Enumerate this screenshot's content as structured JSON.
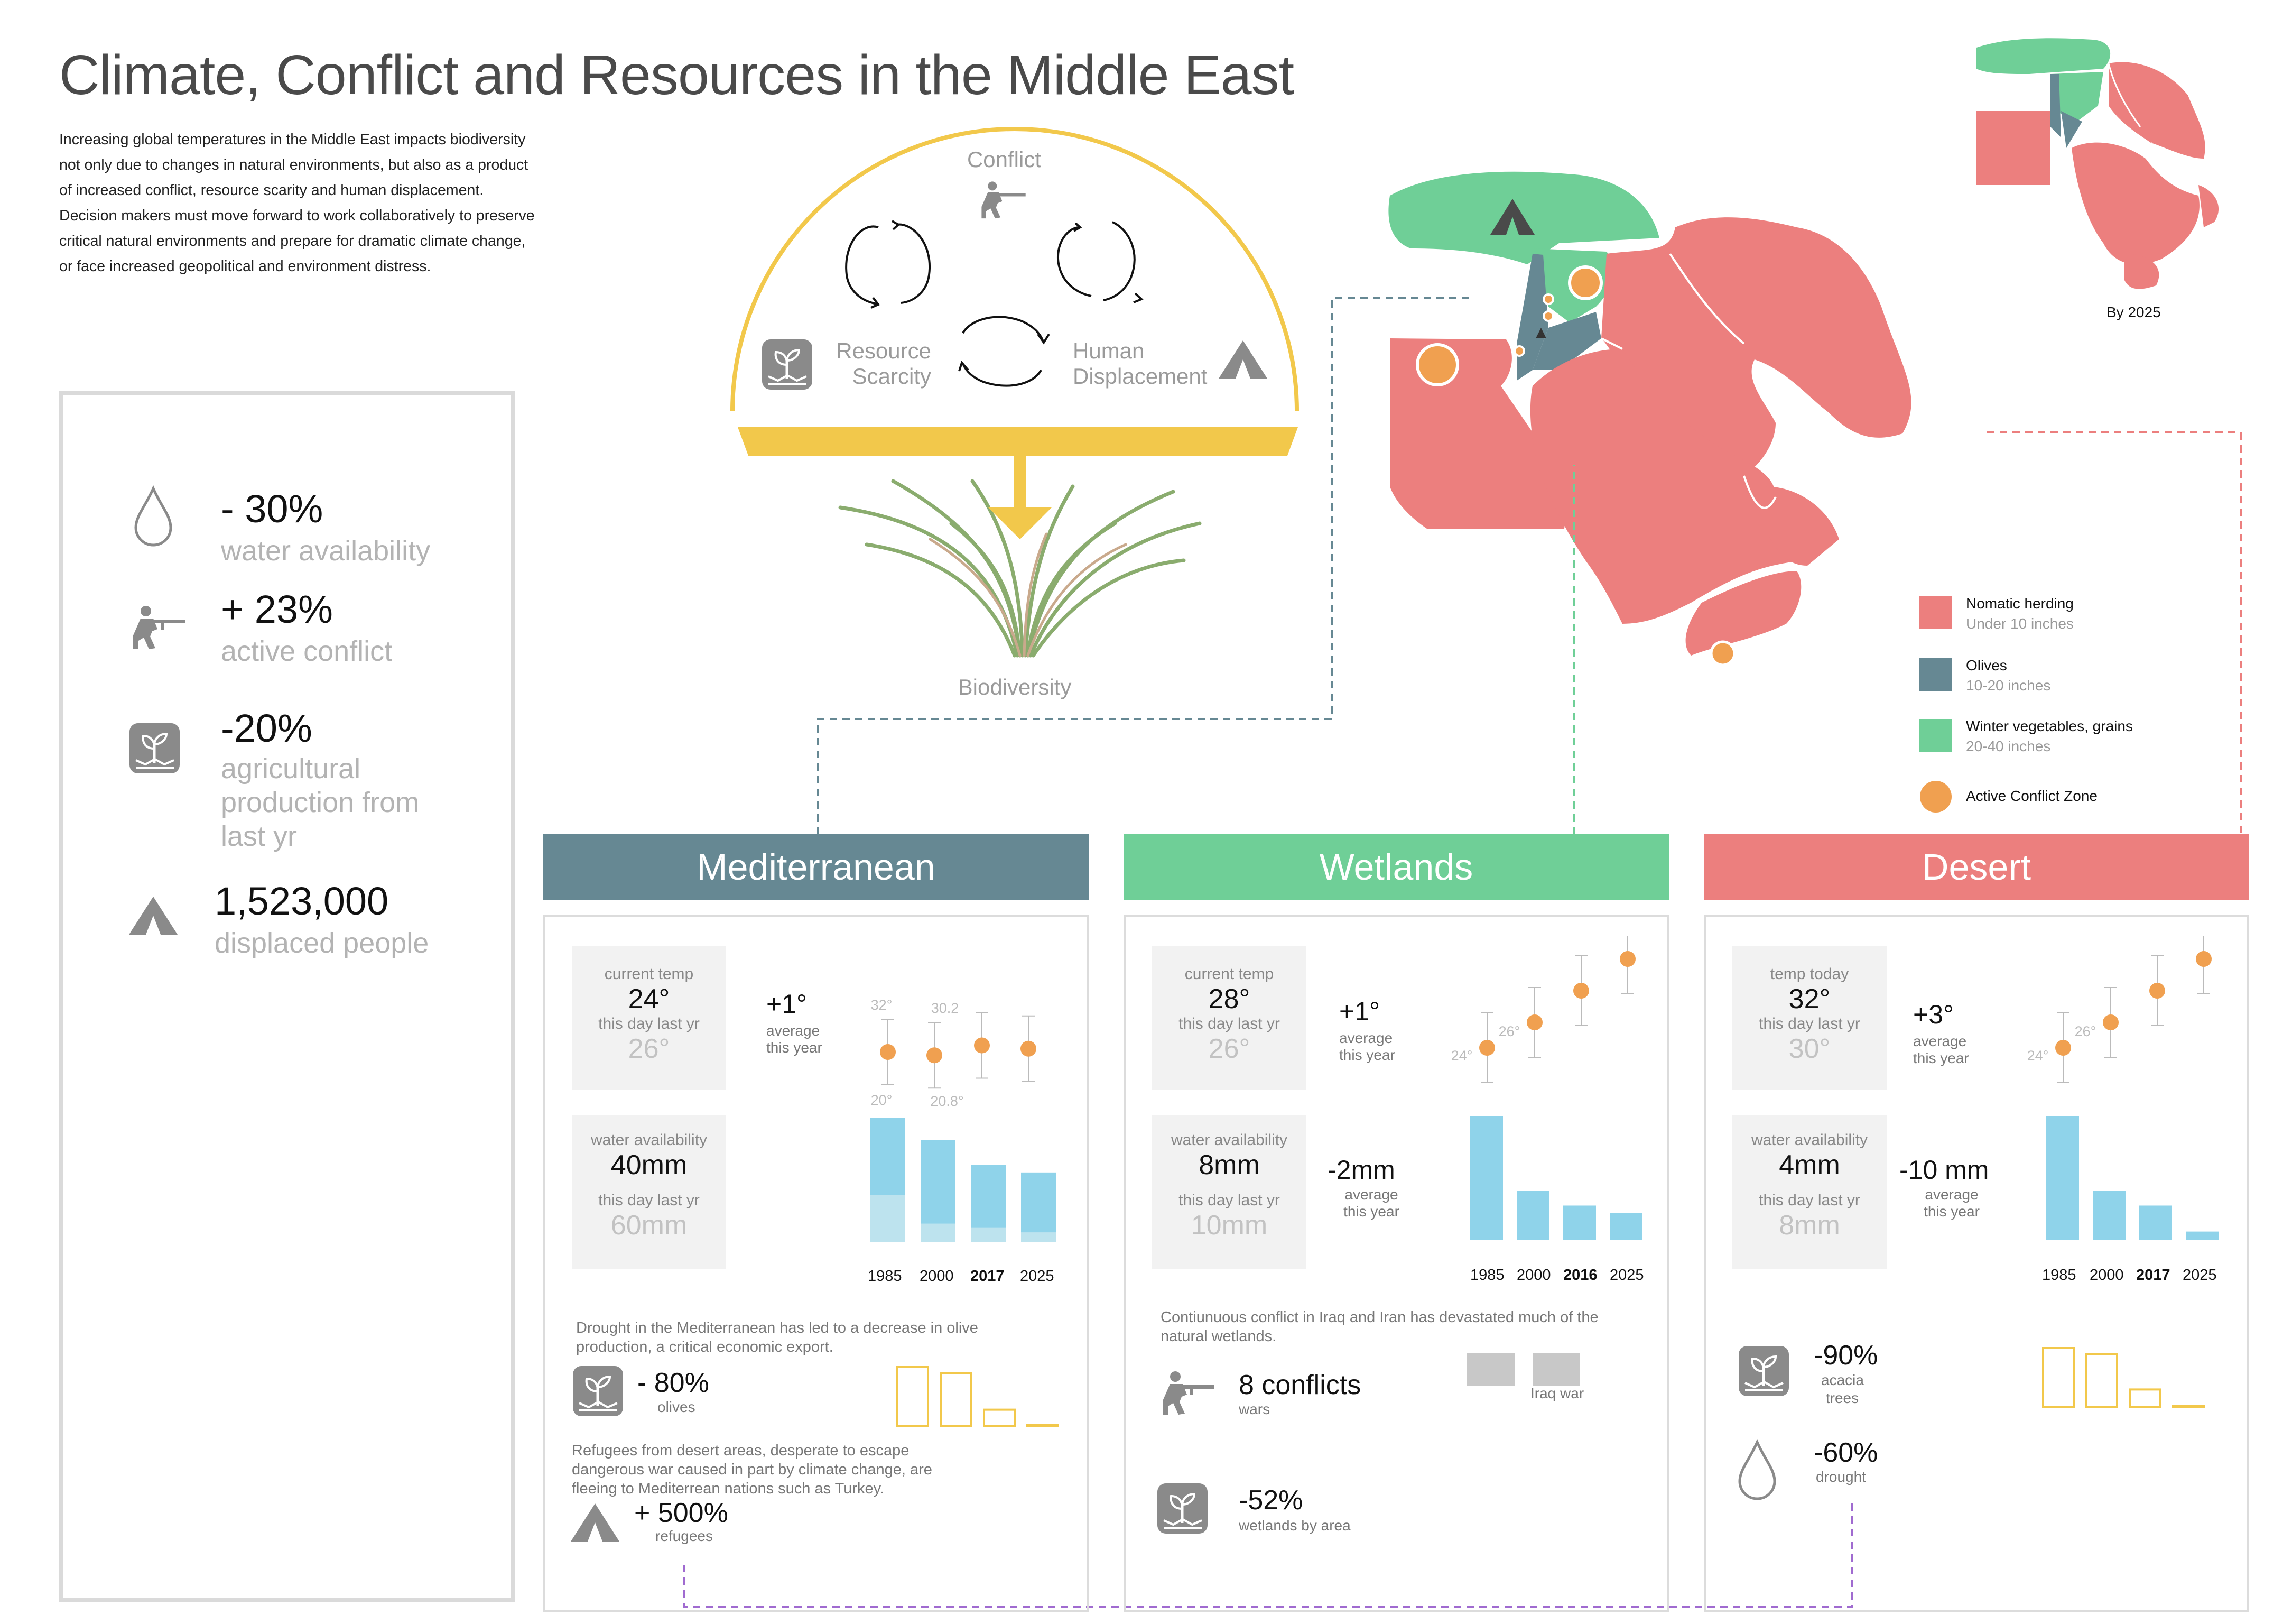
{
  "header": {
    "title": "Climate, Conflict and Resources in the Middle East",
    "intro": "Increasing global temperatures in the Middle East impacts biodiversity not only due to changes in natural environments, but also as a product of increased conflict, resource scarity and human displacement. Decision makers must move forward to work collaboratively to preserve critical natural environments and prepare for dramatic climate change, or face increased geopolitical and environment distress."
  },
  "summary": {
    "water": {
      "value": "- 30%",
      "label": "water availability",
      "icon": "water-drop-icon"
    },
    "conflict": {
      "value": "+ 23%",
      "label": "active conflict",
      "icon": "soldier-icon"
    },
    "agri": {
      "value": "-20%",
      "label": "agricultural production from last yr",
      "icon": "plant-icon"
    },
    "displaced": {
      "value": "1,523,000",
      "label": "displaced people",
      "icon": "tent-icon"
    }
  },
  "cycle": {
    "conflict": "Conflict",
    "resource": "Resource Scarcity",
    "human": "Human Displacement",
    "biodiversity": "Biodiversity"
  },
  "map": {
    "inset_label": "By 2025",
    "legend": [
      {
        "title": "Nomatic herding",
        "sub": "Under 10 inches",
        "color": "#ec7f7e"
      },
      {
        "title": "Olives",
        "sub": "10-20 inches",
        "color": "#668893"
      },
      {
        "title": "Winter vegetables, grains",
        "sub": "20-40 inches",
        "color": "#6fcf97"
      },
      {
        "title": "Active Conflict Zone",
        "sub": "",
        "color": "#f0a050"
      }
    ]
  },
  "colors": {
    "med": "#668893",
    "wet": "#6fcf97",
    "des": "#ec7f7e",
    "bar": "#8fd3ea",
    "bar_light": "#bde3ee",
    "dot": "#f0a050",
    "yellow": "#f2c84b"
  },
  "regions": {
    "med": {
      "name": "Mediterranean",
      "temp_label": "current temp",
      "temp": "24°",
      "temp_prev_label": "this day last yr",
      "temp_prev": "26°",
      "temp_delta": "+1°",
      "temp_delta_label": "average this year",
      "water_label": "water availability",
      "water": "40mm",
      "water_prev_label": "this day last yr",
      "water_prev": "60mm",
      "years": [
        "1985",
        "2000",
        "2017",
        "2025"
      ],
      "note1": "Drought in the Mediterranean has led to a decrease in olive production, a critical economic export.",
      "olive_value": "- 80%",
      "olive_label": "olives",
      "note2": "Refugees from desert areas, desperate to escape dangerous war caused in part by climate change, are fleeing to Mediterrean nations such as Turkey.",
      "refugee_value": "+ 500%",
      "refugee_label": "refugees"
    },
    "wet": {
      "name": "Wetlands",
      "temp_label": "current temp",
      "temp": "28°",
      "temp_prev_label": "this day last yr",
      "temp_prev": "26°",
      "temp_delta": "+1°",
      "temp_delta_label": "average this year",
      "water_label": "water availability",
      "water": "8mm",
      "water_prev_label": "this day last yr",
      "water_prev": "10mm",
      "water_delta": "-2mm",
      "water_delta_label": "average this year",
      "years": [
        "1985",
        "2000",
        "2016",
        "2025"
      ],
      "note1": "Contiunuous conflict in Iraq and Iran has devastated much of the natural wetlands.",
      "conflicts_value": "8 conflicts",
      "conflicts_label": "wars",
      "war_label": "Iraq war",
      "wetland_value": "-52%",
      "wetland_label": "wetlands by area"
    },
    "des": {
      "name": "Desert",
      "temp_label": "temp today",
      "temp": "32°",
      "temp_prev_label": "this day last yr",
      "temp_prev": "30°",
      "temp_delta": "+3°",
      "temp_delta_label": "average this year",
      "water_label": "water availability",
      "water": "4mm",
      "water_prev_label": "this day last yr",
      "water_prev": "8mm",
      "water_delta": "-10 mm",
      "water_delta_label": "average this year",
      "years": [
        "1985",
        "2000",
        "2017",
        "2025"
      ],
      "acacia_value": "-90%",
      "acacia_label": "acacia trees",
      "drought_value": "-60%",
      "drought_label": "drought"
    }
  },
  "chart_data": [
    {
      "type": "scatter",
      "title": "Mediterranean temperature",
      "x": [
        "1985",
        "2000",
        "2017",
        "2025"
      ],
      "y": [
        26,
        25.5,
        27,
        26.5
      ],
      "range_labels": {
        "1985": [
          "32°",
          "20°"
        ],
        "2000": [
          "30.2",
          "20.8°"
        ]
      }
    },
    {
      "type": "bar",
      "title": "Mediterranean water",
      "categories": [
        "1985",
        "2000",
        "2017",
        "2025"
      ],
      "series": [
        {
          "values": [
            100,
            82,
            62,
            56
          ]
        },
        {
          "values": [
            38,
            15,
            12,
            8
          ]
        }
      ]
    },
    {
      "type": "bar",
      "title": "Mediterranean olives",
      "categories": [
        "1",
        "2",
        "3",
        "4"
      ],
      "values": [
        100,
        90,
        28,
        2
      ]
    },
    {
      "type": "scatter",
      "title": "Wetlands temperature",
      "x": [
        "1985",
        "2000",
        "2016",
        "2025"
      ],
      "y": [
        24,
        26,
        28.5,
        31
      ],
      "range_labels": {
        "1985": [
          "24°"
        ],
        "2000": [
          "26°"
        ]
      }
    },
    {
      "type": "bar",
      "title": "Wetlands water",
      "categories": [
        "1985",
        "2000",
        "2016",
        "2025"
      ],
      "values": [
        100,
        40,
        28,
        22
      ]
    },
    {
      "type": "bar",
      "title": "Wetlands conflicts",
      "categories": [
        "1",
        "2"
      ],
      "values": [
        1,
        1
      ],
      "labels": [
        "",
        "Iraq war"
      ]
    },
    {
      "type": "scatter",
      "title": "Desert temperature",
      "x": [
        "1985",
        "2000",
        "2017",
        "2025"
      ],
      "y": [
        24,
        26,
        28.5,
        31
      ],
      "range_labels": {
        "1985": [
          "24°"
        ],
        "2000": [
          "26°"
        ]
      }
    },
    {
      "type": "bar",
      "title": "Desert water",
      "categories": [
        "1985",
        "2000",
        "2017",
        "2025"
      ],
      "values": [
        100,
        40,
        28,
        7
      ]
    },
    {
      "type": "bar",
      "title": "Desert acacia",
      "categories": [
        "1",
        "2",
        "3",
        "4"
      ],
      "values": [
        100,
        90,
        30,
        2
      ]
    }
  ]
}
